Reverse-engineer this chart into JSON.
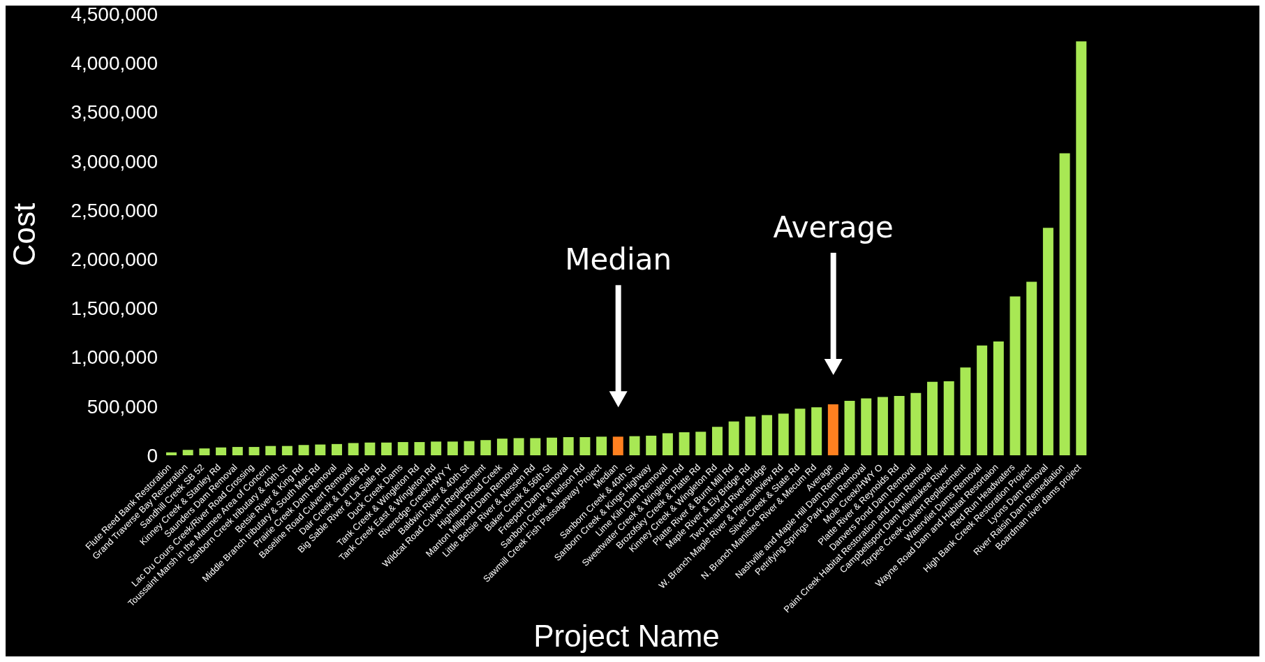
{
  "chart_data": {
    "type": "bar",
    "xlabel": "Project Name",
    "ylabel": "Cost",
    "categories": [
      "Flute Reed Bank Restoration",
      "Grand Traverse Bay Restoration",
      "Sandhill Creek SB 52",
      "Kinney Creek & Stanley Rd",
      "Saunders Dam Removal",
      "Lac Du Cours Creek/River Road Crossing",
      "Toussaint Marsh in the Maumee Area of Concern",
      "Sanborn Creek tributary & 40th St",
      "Betsie River & King Rd",
      "Middle Branch tributary & South Mac Rd",
      "Prairie Creek Dam Removal",
      "Baseline Road Culvert Removal",
      "Dair Creek & Landis Rd",
      "Big Sable River & La Salle Rd",
      "Duck Creek Dams",
      "Tank Creek & Wingleton Rd",
      "Tank Creek East & Wingleton Rd",
      "Riveredge Creek/HWY Y",
      "Baldwin River & 40th St",
      "Wildcat Road Culvert Replacement",
      "Highland Road Creek",
      "Manton Millpond Dam Removal",
      "Little Betsie River & Nessen Rd",
      "Baker Creek & 56th St",
      "Freeport Dam Removal",
      "Sanborn Creek & Nelson Rd",
      "Sawmill Creek Fish Passageway Project",
      "Median",
      "Sanborn Creek & 40th St",
      "Sanborn Creek & Kings Highway",
      "Lime Kiln Dam Removal",
      "Sweetwater Creek & Wingleton Rd",
      "Brozofsky Creek & Platte Rd",
      "Kinney Creek & Wingleton Rd",
      "Platte River & Burnt Mill Rd",
      "Maple River & Ely Bridge Rd",
      "Two Hearted River Bridge",
      "W. Branch Maple River & Pleasantview Rd",
      "Silver Creek & State Rd",
      "N. Branch Manistee River & Mecum Rd",
      "Average",
      "Nashville and Maple Hill Dam Removal",
      "Petrifying Springs Park Dam Removal",
      "Mole Creek/HWY O",
      "Platte River & Reynolds Rd",
      "Danvers Pond Dam Removal",
      "Paint Creek Habitat Restoration and Dam Removal",
      "Campbellsport Dam  Milwaukee River",
      "Torpee Creek Culvert Replacement",
      "Watervliet Dams Removal",
      "Wayne Road Dam and Habitat Resortaion",
      "Red Run Headwaters",
      "High Bank Creek Restoration Project",
      "Lyons Dam removal",
      "River Raisin Dam Remediation",
      "Boardman river dams project"
    ],
    "values": [
      30000,
      55000,
      70000,
      80000,
      85000,
      85000,
      95000,
      95000,
      105000,
      110000,
      115000,
      125000,
      130000,
      130000,
      135000,
      135000,
      140000,
      140000,
      145000,
      155000,
      170000,
      175000,
      175000,
      180000,
      185000,
      185000,
      190000,
      190000,
      195000,
      200000,
      225000,
      235000,
      240000,
      290000,
      345000,
      395000,
      410000,
      425000,
      475000,
      490000,
      520000,
      555000,
      580000,
      595000,
      605000,
      635000,
      750000,
      755000,
      895000,
      1120000,
      1160000,
      1620000,
      1770000,
      2320000,
      3080000,
      4220000
    ],
    "colors": [
      "#a8e854",
      "#a8e854",
      "#a8e854",
      "#a8e854",
      "#a8e854",
      "#a8e854",
      "#a8e854",
      "#a8e854",
      "#a8e854",
      "#a8e854",
      "#a8e854",
      "#a8e854",
      "#a8e854",
      "#a8e854",
      "#a8e854",
      "#a8e854",
      "#a8e854",
      "#a8e854",
      "#a8e854",
      "#a8e854",
      "#a8e854",
      "#a8e854",
      "#a8e854",
      "#a8e854",
      "#a8e854",
      "#a8e854",
      "#a8e854",
      "#ff8020",
      "#a8e854",
      "#a8e854",
      "#a8e854",
      "#a8e854",
      "#a8e854",
      "#a8e854",
      "#a8e854",
      "#a8e854",
      "#a8e854",
      "#a8e854",
      "#a8e854",
      "#a8e854",
      "#ff8020",
      "#a8e854",
      "#a8e854",
      "#a8e854",
      "#a8e854",
      "#a8e854",
      "#a8e854",
      "#a8e854",
      "#a8e854",
      "#a8e854",
      "#a8e854",
      "#a8e854",
      "#a8e854",
      "#a8e854",
      "#a8e854",
      "#a8e854"
    ],
    "ylim": [
      0,
      4500000
    ],
    "yticks": [
      0,
      {
        "value": 500000,
        "label": "500,000"
      },
      {
        "value": 1000000,
        "label": "1,000,000"
      },
      {
        "value": 1500000,
        "label": "1,500,000"
      },
      {
        "value": 2000000,
        "label": "2,000,000"
      },
      {
        "value": 2500000,
        "label": "2,500,000"
      },
      {
        "value": 3000000,
        "label": "3,000,000"
      },
      {
        "value": 3500000,
        "label": "3,500,000"
      },
      {
        "value": 4000000,
        "label": "4,000,000"
      },
      {
        "value": 4500000,
        "label": "4,500,000"
      }
    ],
    "grid": false,
    "annotations": [
      "Median",
      "Average"
    ]
  }
}
